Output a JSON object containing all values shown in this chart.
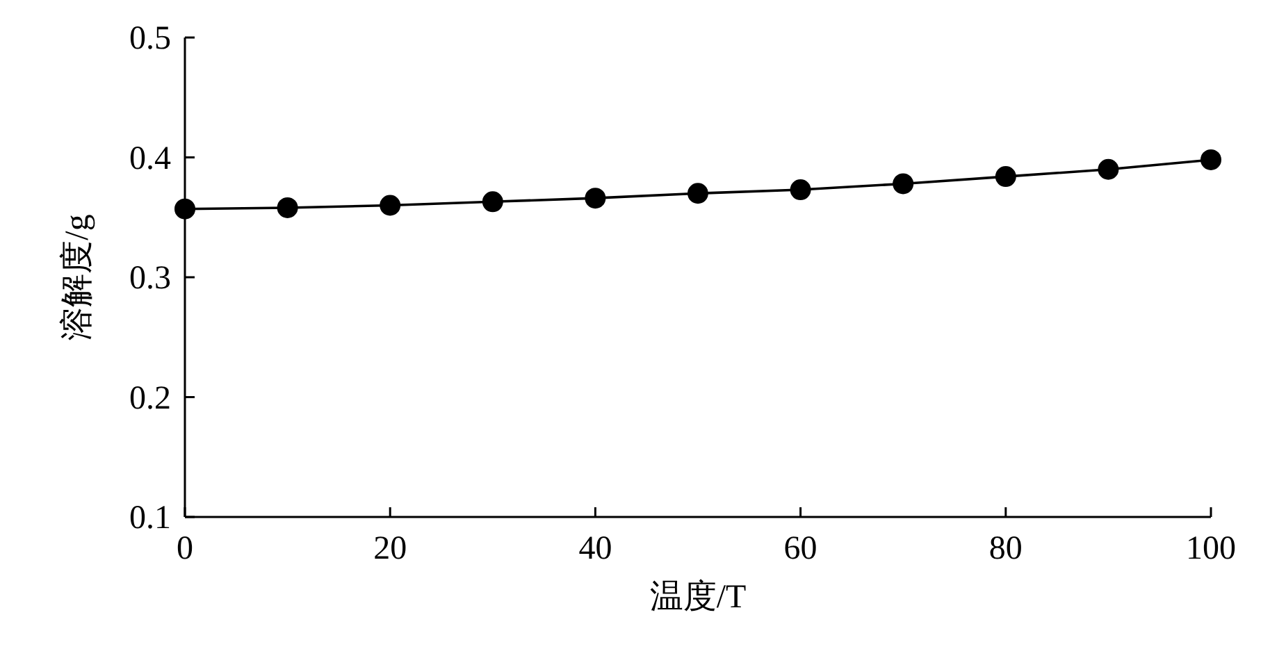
{
  "chart_data": {
    "type": "line",
    "xlabel": "温度/T",
    "ylabel": "溶解度/g",
    "x": [
      0,
      10,
      20,
      30,
      40,
      50,
      60,
      70,
      80,
      90,
      100
    ],
    "series": [
      {
        "color": "#000000",
        "values": [
          0.357,
          0.358,
          0.36,
          0.363,
          0.366,
          0.37,
          0.373,
          0.378,
          0.384,
          0.39,
          0.398
        ]
      }
    ],
    "xlim": [
      0,
      100
    ],
    "xticks": [
      0,
      20,
      40,
      60,
      80,
      100
    ],
    "ylim": [
      0.1,
      0.5
    ],
    "yticks": [
      0.1,
      0.2,
      0.3,
      0.4,
      0.5
    ],
    "marker": "circle",
    "line_style": "solid",
    "grid": false
  }
}
